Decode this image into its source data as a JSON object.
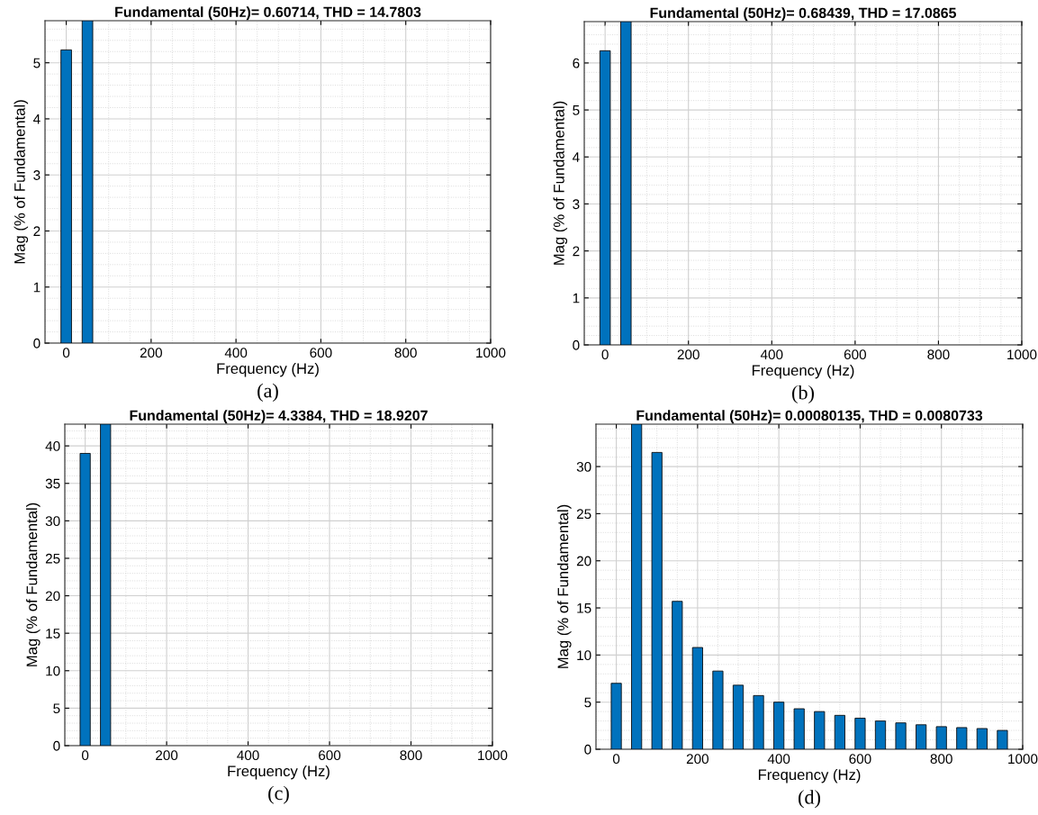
{
  "chart_data": [
    {
      "type": "bar",
      "title": "Fundamental (50Hz)= 0.60714, THD = 14.7803",
      "xlabel": "Frequency (Hz)",
      "ylabel": "Mag (% of Fundamental)",
      "annotations": [
        "(a)"
      ],
      "x": [
        0,
        50
      ],
      "values": [
        5.23,
        5.75
      ],
      "color": "#0072bd",
      "xlim": [
        -50,
        1000
      ],
      "xticks": [
        0,
        200,
        400,
        600,
        800,
        1000
      ],
      "ylim": [
        0,
        5.75
      ],
      "yticks": [
        0,
        1,
        2,
        3,
        4,
        5
      ],
      "grid": true
    },
    {
      "type": "bar",
      "title": "Fundamental (50Hz)= 0.68439, THD = 17.0865",
      "xlabel": "Frequency (Hz)",
      "ylabel": "Mag (% of Fundamental)",
      "annotations": [
        "(b)"
      ],
      "x": [
        0,
        50
      ],
      "values": [
        6.26,
        6.88
      ],
      "color": "#0072bd",
      "xlim": [
        -50,
        1000
      ],
      "xticks": [
        0,
        200,
        400,
        600,
        800,
        1000
      ],
      "ylim": [
        0,
        6.88
      ],
      "yticks": [
        0,
        1,
        2,
        3,
        4,
        5,
        6
      ],
      "grid": true
    },
    {
      "type": "bar",
      "title": "Fundamental (50Hz)= 4.3384, THD = 18.9207",
      "xlabel": "Frequency (Hz)",
      "ylabel": "Mag (% of Fundamental)",
      "annotations": [
        "(c)"
      ],
      "x": [
        0,
        50
      ],
      "values": [
        39.0,
        42.9
      ],
      "color": "#0072bd",
      "xlim": [
        -50,
        1000
      ],
      "xticks": [
        0,
        200,
        400,
        600,
        800,
        1000
      ],
      "ylim": [
        0,
        42.9
      ],
      "yticks": [
        0,
        5,
        10,
        15,
        20,
        25,
        30,
        35,
        40
      ],
      "grid": true
    },
    {
      "type": "bar",
      "title": "Fundamental (50Hz)= 0.00080135, THD = 0.0080733",
      "xlabel": "Frequency (Hz)",
      "ylabel": "Mag (% of Fundamental)",
      "annotations": [
        "(d)"
      ],
      "x": [
        0,
        50,
        100,
        150,
        200,
        250,
        300,
        350,
        400,
        450,
        500,
        550,
        600,
        650,
        700,
        750,
        800,
        850,
        900,
        950
      ],
      "values": [
        7.0,
        34.5,
        31.5,
        15.7,
        10.8,
        8.3,
        6.8,
        5.7,
        5.0,
        4.3,
        4.0,
        3.6,
        3.3,
        3.0,
        2.8,
        2.6,
        2.4,
        2.3,
        2.2,
        2.0
      ],
      "color": "#0072bd",
      "xlim": [
        -50,
        1000
      ],
      "xticks": [
        0,
        200,
        400,
        600,
        800,
        1000
      ],
      "ylim": [
        0,
        34.5
      ],
      "yticks": [
        0,
        5,
        10,
        15,
        20,
        25,
        30
      ],
      "grid": true
    }
  ]
}
